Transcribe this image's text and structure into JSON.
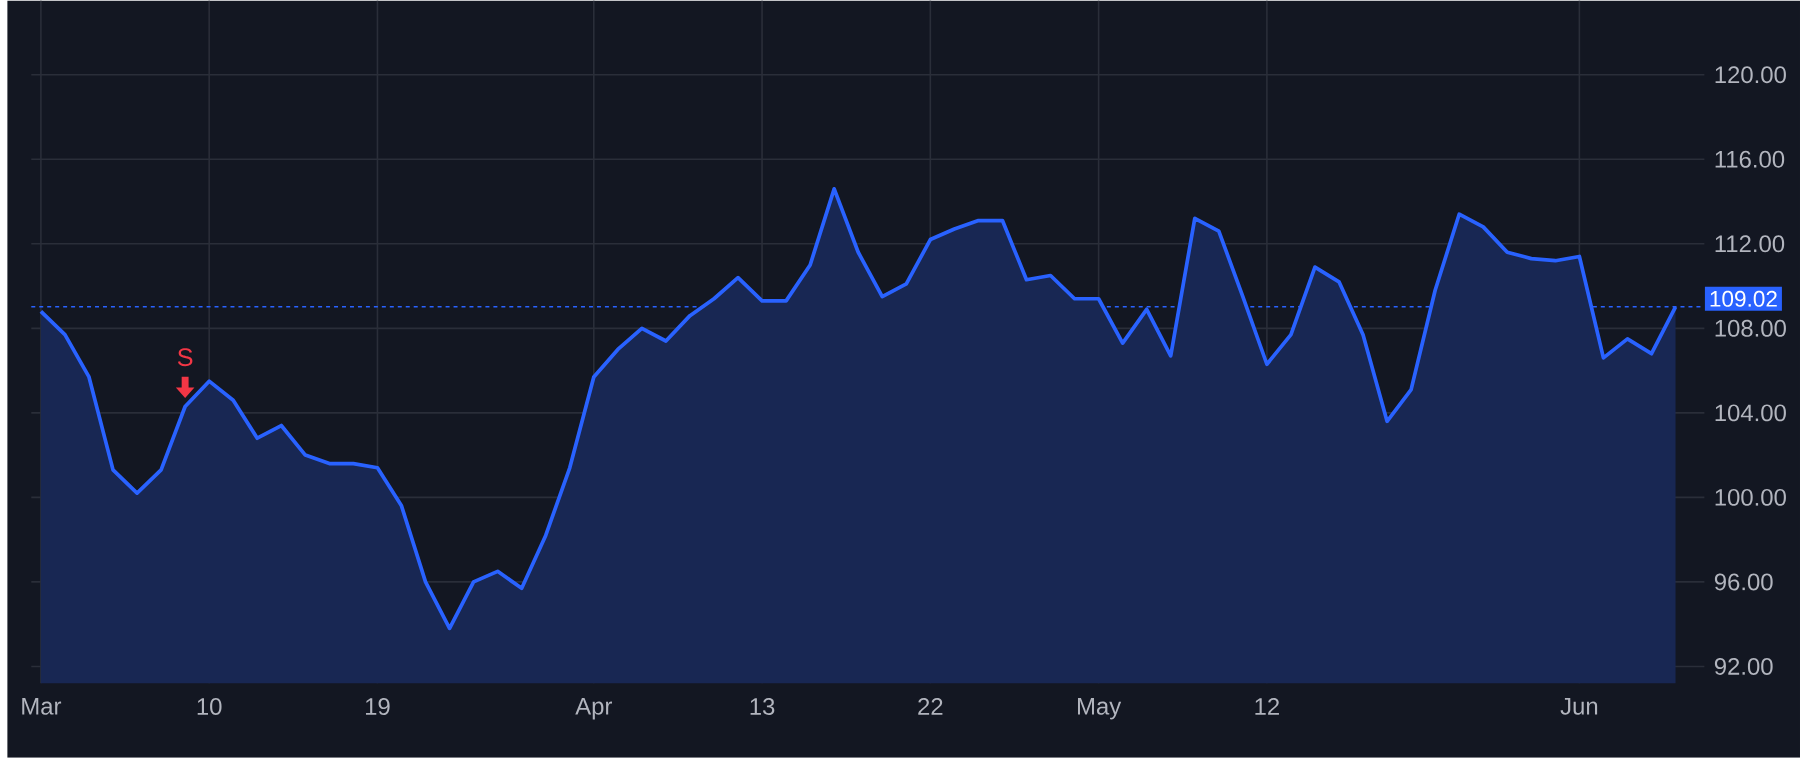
{
  "chart_data": {
    "type": "area",
    "categories": [
      "Mar",
      null,
      null,
      null,
      null,
      null,
      null,
      "10",
      null,
      null,
      null,
      null,
      null,
      null,
      "19",
      null,
      null,
      null,
      null,
      null,
      null,
      null,
      null,
      "Apr",
      null,
      null,
      null,
      null,
      null,
      null,
      "13",
      null,
      null,
      null,
      null,
      null,
      null,
      "22",
      null,
      null,
      null,
      null,
      null,
      null,
      "May",
      null,
      null,
      null,
      null,
      null,
      null,
      "12",
      null,
      null,
      null,
      null,
      null,
      null,
      null,
      null,
      null,
      null,
      null,
      null,
      "Jun",
      null,
      null,
      null,
      null
    ],
    "series": [
      {
        "color": "#2962ff",
        "values": [
          108.8,
          107.7,
          105.7,
          101.3,
          100.2,
          101.3,
          104.3,
          105.5,
          104.6,
          102.8,
          103.4,
          102.0,
          101.6,
          101.6,
          101.4,
          99.6,
          96.0,
          93.8,
          96.0,
          96.5,
          95.7,
          98.2,
          101.4,
          105.7,
          107.0,
          108.0,
          107.4,
          108.6,
          109.4,
          110.4,
          109.3,
          109.3,
          111.0,
          114.6,
          111.6,
          109.5,
          110.1,
          112.2,
          112.7,
          113.1,
          113.1,
          110.3,
          110.5,
          109.4,
          109.4,
          107.3,
          108.9,
          106.7,
          113.2,
          112.6,
          109.5,
          106.3,
          107.7,
          110.9,
          110.2,
          107.7,
          103.6,
          105.1,
          109.8,
          113.4,
          112.8,
          111.6,
          111.3,
          111.2,
          111.4,
          106.6,
          107.5,
          106.8,
          109.02
        ]
      }
    ],
    "ylim": [
      91.2,
      123.5
    ],
    "yticks": [
      {
        "value": 92,
        "label": "92.00"
      },
      {
        "value": 96,
        "label": "96.00"
      },
      {
        "value": 100,
        "label": "100.00"
      },
      {
        "value": 104,
        "label": "104.00"
      },
      {
        "value": 108,
        "label": "108.00"
      },
      {
        "value": 112,
        "label": "112.00"
      },
      {
        "value": 116,
        "label": "116.00"
      },
      {
        "value": 120,
        "label": "120.00"
      }
    ],
    "grid": true,
    "ref_lines": [
      {
        "axis": "y",
        "value": 109.02,
        "label": "109.02",
        "color": "#2962ff",
        "line_style": "dotted"
      }
    ],
    "annotations": [
      {
        "text": "S",
        "y": 104.3
      }
    ]
  }
}
